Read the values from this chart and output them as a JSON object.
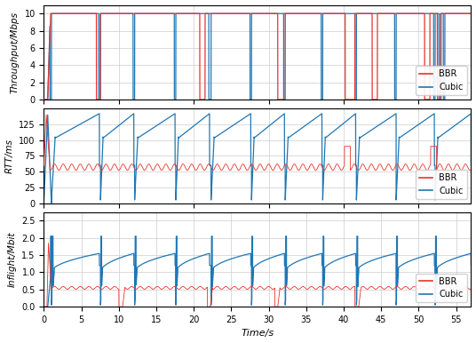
{
  "xlim": [
    0,
    57
  ],
  "xticks": [
    0,
    5,
    10,
    15,
    20,
    25,
    30,
    35,
    40,
    45,
    50,
    55
  ],
  "xlabel": "Time/s",
  "panel1": {
    "ylabel": "Throughput/Mbps",
    "ylim": [
      0,
      11
    ],
    "yticks": [
      0,
      2,
      4,
      6,
      8,
      10
    ]
  },
  "panel2": {
    "ylabel": "RTT/ms",
    "ylim": [
      0,
      150
    ],
    "yticks": [
      0,
      25,
      50,
      75,
      100,
      125
    ]
  },
  "panel3": {
    "ylabel": "Inflight/Mbit",
    "ylim": [
      0,
      2.75
    ],
    "yticks": [
      0.0,
      0.5,
      1.0,
      1.5,
      2.0,
      2.5
    ]
  },
  "bbr_color": "#e8342a",
  "cubic_color": "#1f77b4",
  "grid_color": "#cccccc",
  "cubic_tp_drops": [
    [
      0.8,
      1.0
    ],
    [
      7.3,
      7.55
    ],
    [
      11.9,
      12.1
    ],
    [
      17.4,
      17.6
    ],
    [
      22.0,
      22.3
    ],
    [
      27.5,
      27.7
    ],
    [
      32.0,
      32.2
    ],
    [
      37.0,
      37.2
    ],
    [
      41.5,
      41.7
    ],
    [
      46.8,
      47.0
    ],
    [
      52.0,
      52.2
    ],
    [
      52.7,
      52.9
    ],
    [
      53.3,
      53.5
    ]
  ],
  "bbr_tp_drops": [
    [
      7.0,
      7.5
    ],
    [
      20.8,
      21.5
    ],
    [
      31.2,
      32.0
    ],
    [
      40.2,
      41.5
    ],
    [
      43.8,
      44.5
    ],
    [
      50.8,
      51.5
    ],
    [
      52.5,
      53.0
    ]
  ],
  "cubic_rtt_periods": [
    [
      1.0,
      7.4
    ],
    [
      7.55,
      12.0
    ],
    [
      12.1,
      17.5
    ],
    [
      17.6,
      22.1
    ],
    [
      22.3,
      27.6
    ],
    [
      27.7,
      32.1
    ],
    [
      32.2,
      37.1
    ],
    [
      37.2,
      41.6
    ],
    [
      41.7,
      47.0
    ],
    [
      47.0,
      52.1
    ],
    [
      52.2,
      57.0
    ]
  ],
  "bbr_inflight_drops": [
    [
      10.0,
      10.5
    ],
    [
      21.8,
      22.2
    ],
    [
      30.8,
      31.2
    ],
    [
      41.5,
      42.0
    ]
  ],
  "cubic_inflight_periods": [
    [
      1.0,
      7.4
    ],
    [
      7.55,
      12.0
    ],
    [
      12.1,
      17.5
    ],
    [
      17.6,
      22.1
    ],
    [
      22.3,
      27.6
    ],
    [
      27.7,
      32.1
    ],
    [
      32.2,
      37.1
    ],
    [
      37.2,
      41.6
    ],
    [
      41.7,
      47.0
    ],
    [
      47.0,
      52.1
    ],
    [
      52.2,
      57.0
    ]
  ]
}
